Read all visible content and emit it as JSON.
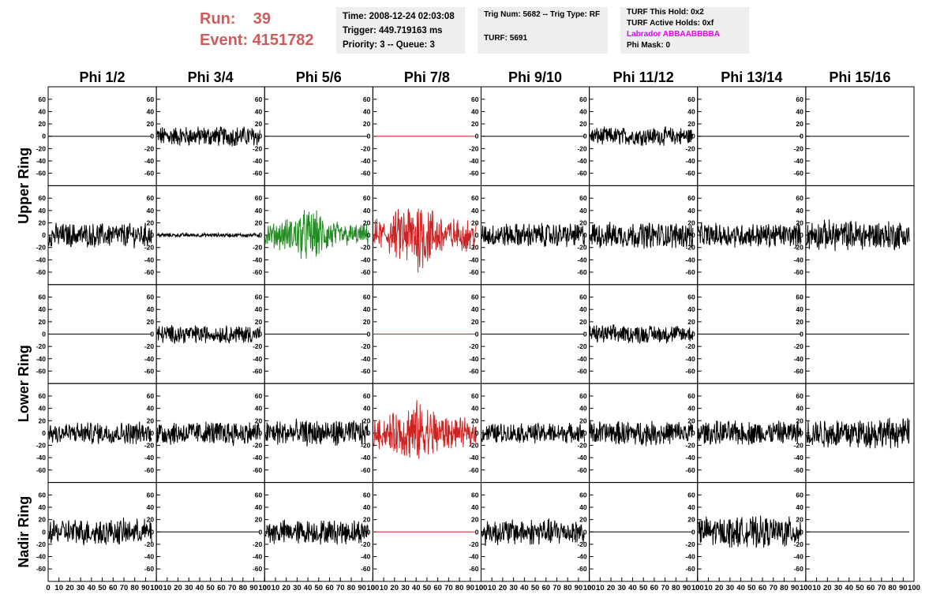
{
  "header": {
    "run_label": "Run:",
    "run_value": "39",
    "event_label": "Event:",
    "event_value": "4151782",
    "time": "Time: 2008-12-24 02:03:08",
    "trigger": "Trigger: 449.719163 ms",
    "priority": "Priority: 3 -- Queue: 3",
    "trig_num": "Trig Num: 5682 -- Trig Type: RF",
    "turf": "TURF: 5691",
    "turf_this_hold": "TURF This Hold: 0x2",
    "turf_active_holds": "TURF Active Holds: 0xf",
    "labrador": "Labrador ABBAABBBBA",
    "phi_mask": "Phi Mask: 0"
  },
  "colors": {
    "header_red": "#cd5c5c",
    "labrador_magenta": "#ee00ee",
    "trace_black": "#000000",
    "trace_green": "#228b22",
    "trace_red": "#cc2222",
    "info_box_bg": "#eeeeee"
  },
  "chart_data": {
    "type": "line",
    "columns": [
      "Phi 1/2",
      "Phi 3/4",
      "Phi 5/6",
      "Phi 7/8",
      "Phi 9/10",
      "Phi 11/12",
      "Phi 13/14",
      "Phi 15/16"
    ],
    "rows": [
      "Upper Ring",
      "Upper Ring",
      "Lower Ring",
      "Lower Ring",
      "Nadir Ring"
    ],
    "row_labels": [
      "Upper Ring",
      "Lower Ring",
      "Nadir Ring"
    ],
    "ylim": [
      -70,
      70
    ],
    "yticks": [
      -60,
      -40,
      -20,
      0,
      20,
      40,
      60
    ],
    "xlim": [
      0,
      100
    ],
    "xticks": [
      0,
      10,
      20,
      30,
      40,
      50,
      60,
      70,
      80,
      90,
      100
    ],
    "samples": 260,
    "panels": [
      [
        {
          "amp": 0,
          "color": "black"
        },
        {
          "amp": 10,
          "color": "black"
        },
        {
          "amp": 0,
          "color": "black"
        },
        {
          "amp": 0,
          "color": "red"
        },
        {
          "amp": 0,
          "color": "black"
        },
        {
          "amp": 9,
          "color": "black"
        },
        {
          "amp": 0,
          "color": "black"
        },
        {
          "amp": 0,
          "color": "black"
        }
      ],
      [
        {
          "amp": 12,
          "color": "black"
        },
        {
          "amp": 2,
          "color": "black"
        },
        {
          "amp": 20,
          "color": "green",
          "burst": true
        },
        {
          "amp": 28,
          "color": "red",
          "burst": true
        },
        {
          "amp": 12,
          "color": "black"
        },
        {
          "amp": 13,
          "color": "black"
        },
        {
          "amp": 12,
          "color": "black"
        },
        {
          "amp": 15,
          "color": "black"
        }
      ],
      [
        {
          "amp": 0,
          "color": "black"
        },
        {
          "amp": 9,
          "color": "black"
        },
        {
          "amp": 0,
          "color": "black"
        },
        {
          "amp": 0,
          "color": "red"
        },
        {
          "amp": 0,
          "color": "black"
        },
        {
          "amp": 9,
          "color": "black"
        },
        {
          "amp": 0,
          "color": "black"
        },
        {
          "amp": 0,
          "color": "black"
        }
      ],
      [
        {
          "amp": 11,
          "color": "black"
        },
        {
          "amp": 12,
          "color": "black"
        },
        {
          "amp": 13,
          "color": "black"
        },
        {
          "amp": 25,
          "color": "red",
          "burst": true
        },
        {
          "amp": 10,
          "color": "black"
        },
        {
          "amp": 12,
          "color": "black"
        },
        {
          "amp": 12,
          "color": "black"
        },
        {
          "amp": 15,
          "color": "black"
        }
      ],
      [
        {
          "amp": 13,
          "color": "black"
        },
        {
          "amp": 0,
          "color": "black"
        },
        {
          "amp": 12,
          "color": "black"
        },
        {
          "amp": 0,
          "color": "red"
        },
        {
          "amp": 13,
          "color": "black"
        },
        {
          "amp": 0,
          "color": "black"
        },
        {
          "amp": 15,
          "color": "black"
        },
        {
          "amp": 0,
          "color": "black"
        }
      ]
    ]
  }
}
